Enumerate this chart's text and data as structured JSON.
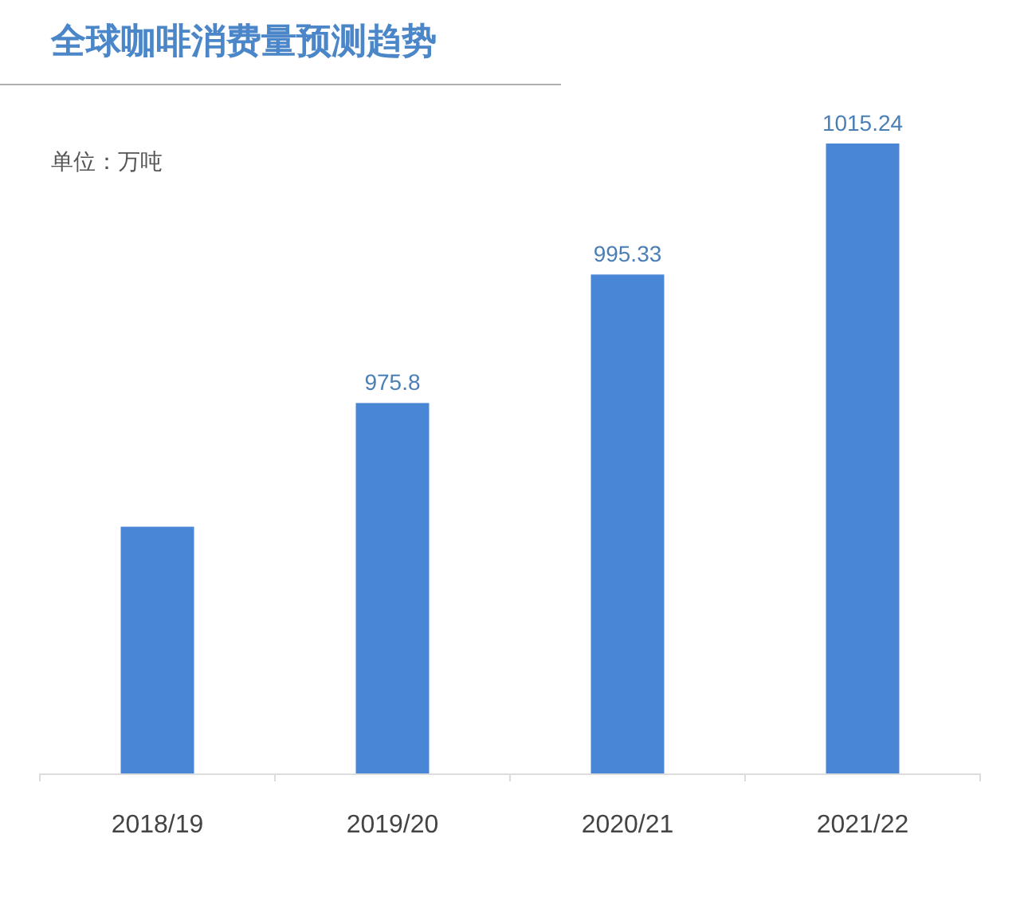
{
  "chart_data": {
    "type": "bar",
    "title": "全球咖啡消费量预测趋势",
    "subtitle": "单位：万吨",
    "categories": [
      "2018/19",
      "2019/20",
      "2020/21",
      "2021/22"
    ],
    "values": [
      957,
      975.8,
      995.33,
      1015.24
    ],
    "value_labels": [
      null,
      "975.8",
      "995.33",
      "1015.24"
    ],
    "color": "#4a86d6",
    "ylim": [
      919.5,
      1015.24
    ],
    "tick_labels": "x"
  }
}
